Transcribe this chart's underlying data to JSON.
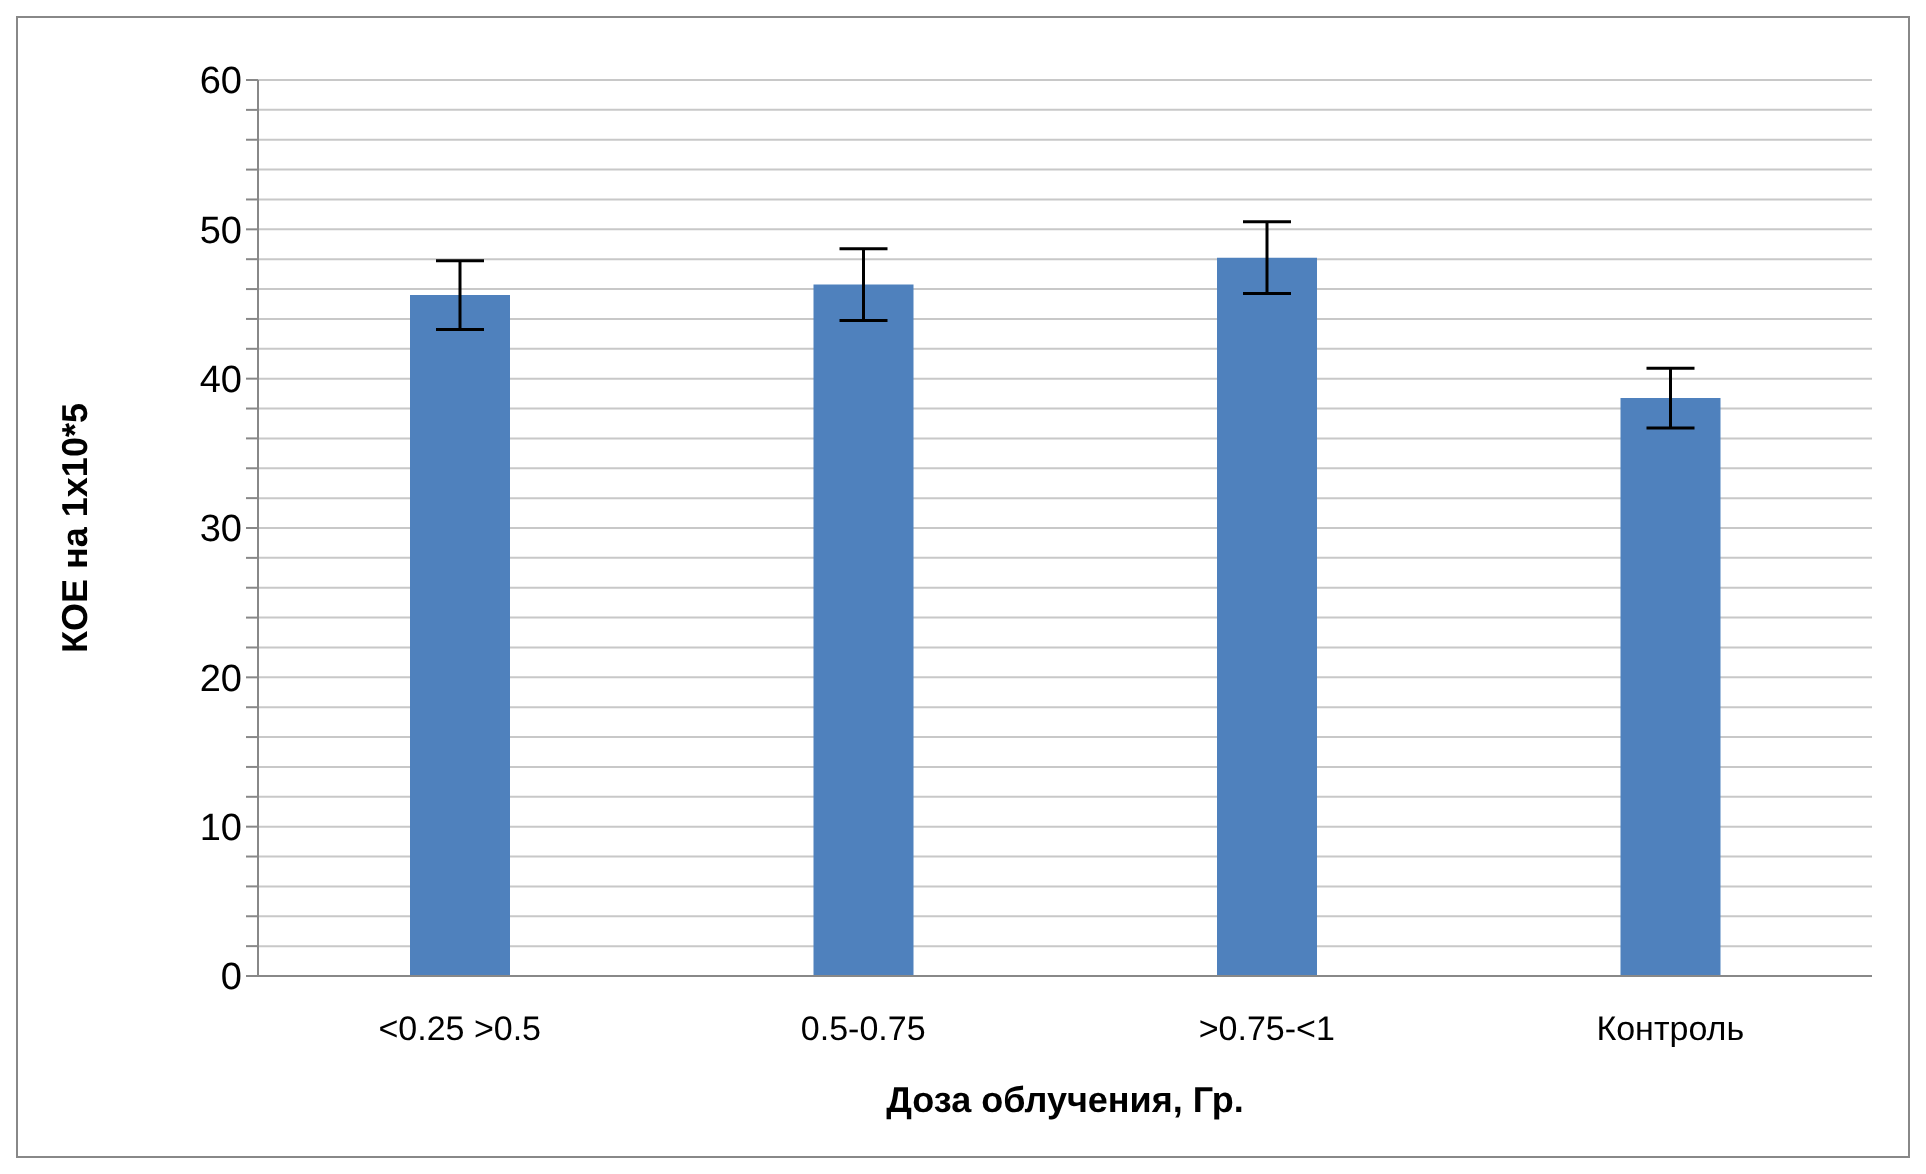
{
  "chart_data": {
    "type": "bar",
    "xlabel": "Доза облучения, Гр.",
    "ylabel": "КОЕ на 1х10*5",
    "categories": [
      "<0.25 >0.5",
      "0.5-0.75",
      ">0.75-<1",
      "Контроль"
    ],
    "values": [
      45.6,
      46.3,
      48.1,
      38.7
    ],
    "errors": [
      2.3,
      2.4,
      2.4,
      2.0
    ],
    "color": "#4f81bd",
    "ylim": [
      0,
      60
    ],
    "yticks": [
      0,
      {
        "value": 2,
        "label": null
      },
      {
        "value": 4,
        "label": null
      },
      {
        "value": 6,
        "label": null
      },
      {
        "value": 8,
        "label": null
      },
      10,
      {
        "value": 12,
        "label": null
      },
      {
        "value": 14,
        "label": null
      },
      {
        "value": 16,
        "label": null
      },
      {
        "value": 18,
        "label": null
      },
      20,
      {
        "value": 22,
        "label": null
      },
      {
        "value": 24,
        "label": null
      },
      {
        "value": 26,
        "label": null
      },
      {
        "value": 28,
        "label": null
      },
      30,
      {
        "value": 32,
        "label": null
      },
      {
        "value": 34,
        "label": null
      },
      {
        "value": 36,
        "label": null
      },
      {
        "value": 38,
        "label": null
      },
      40,
      {
        "value": 42,
        "label": null
      },
      {
        "value": 44,
        "label": null
      },
      {
        "value": 46,
        "label": null
      },
      {
        "value": 48,
        "label": null
      },
      50,
      {
        "value": 52,
        "label": null
      },
      {
        "value": 54,
        "label": null
      },
      {
        "value": 56,
        "label": null
      },
      {
        "value": 58,
        "label": null
      },
      60
    ],
    "grid": "y"
  }
}
